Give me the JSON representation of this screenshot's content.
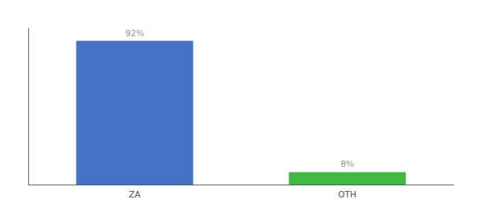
{
  "chart_data": {
    "type": "bar",
    "categories": [
      "ZA",
      "OTH"
    ],
    "values": [
      92,
      8
    ],
    "value_labels": [
      "92%",
      "8%"
    ],
    "colors": [
      "#4472c4",
      "#3cb843"
    ],
    "ylim": [
      0,
      100
    ],
    "grid": false,
    "tick_labels": "x",
    "data_labels": true
  }
}
